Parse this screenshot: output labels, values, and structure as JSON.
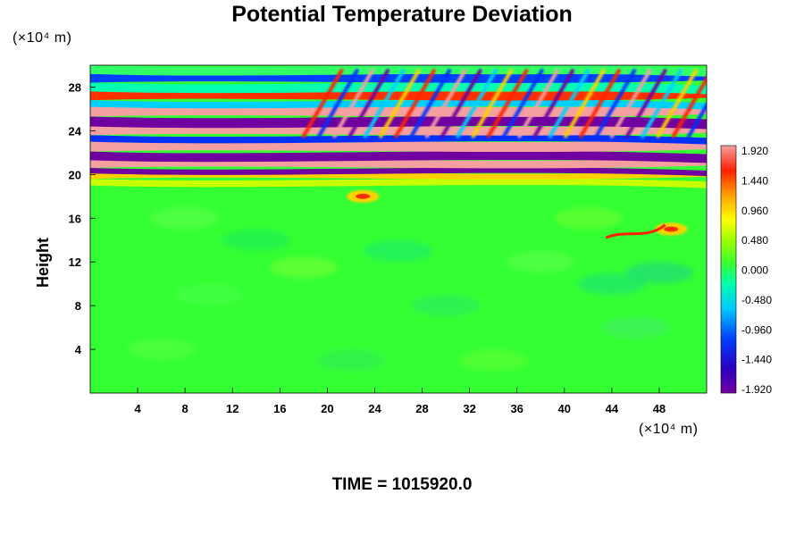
{
  "chart_data": {
    "type": "heatmap",
    "title": "Potential Temperature Deviation",
    "ylabel": "Height",
    "xlabel": "",
    "x_unit_label": "(×10⁴ m)",
    "y_unit_label": "(×10⁴ m)",
    "xlim": [
      0,
      52
    ],
    "ylim": [
      0,
      30
    ],
    "x_ticks": [
      "4",
      "8",
      "12",
      "16",
      "20",
      "24",
      "28",
      "32",
      "36",
      "40",
      "44",
      "48"
    ],
    "y_ticks": [
      "4",
      "8",
      "12",
      "16",
      "20",
      "24",
      "28"
    ],
    "colorbar": {
      "min": -1.92,
      "max": 1.92,
      "tick_labels": [
        "1.920",
        "1.440",
        "0.960",
        "0.480",
        "0.000",
        "-0.480",
        "-0.960",
        "-1.440",
        "-1.920"
      ]
    },
    "regions": [
      {
        "description": "alternating positive/negative bands",
        "y_range": [
          19,
          30
        ],
        "value_range": [
          -1.92,
          1.92
        ]
      },
      {
        "description": "near-zero background",
        "y_range": [
          0,
          19
        ],
        "value": 0.0
      },
      {
        "description": "warm anomaly",
        "x": 23,
        "y": 18,
        "value": 1.0
      },
      {
        "description": "warm anomaly",
        "x": 49,
        "y": 15,
        "value": 1.4
      }
    ]
  },
  "footer": "TIME = 1015920.0",
  "colors": {
    "background_field": "#33ff33",
    "max_color": "#f4a0a0",
    "min_color": "#7000a0"
  }
}
